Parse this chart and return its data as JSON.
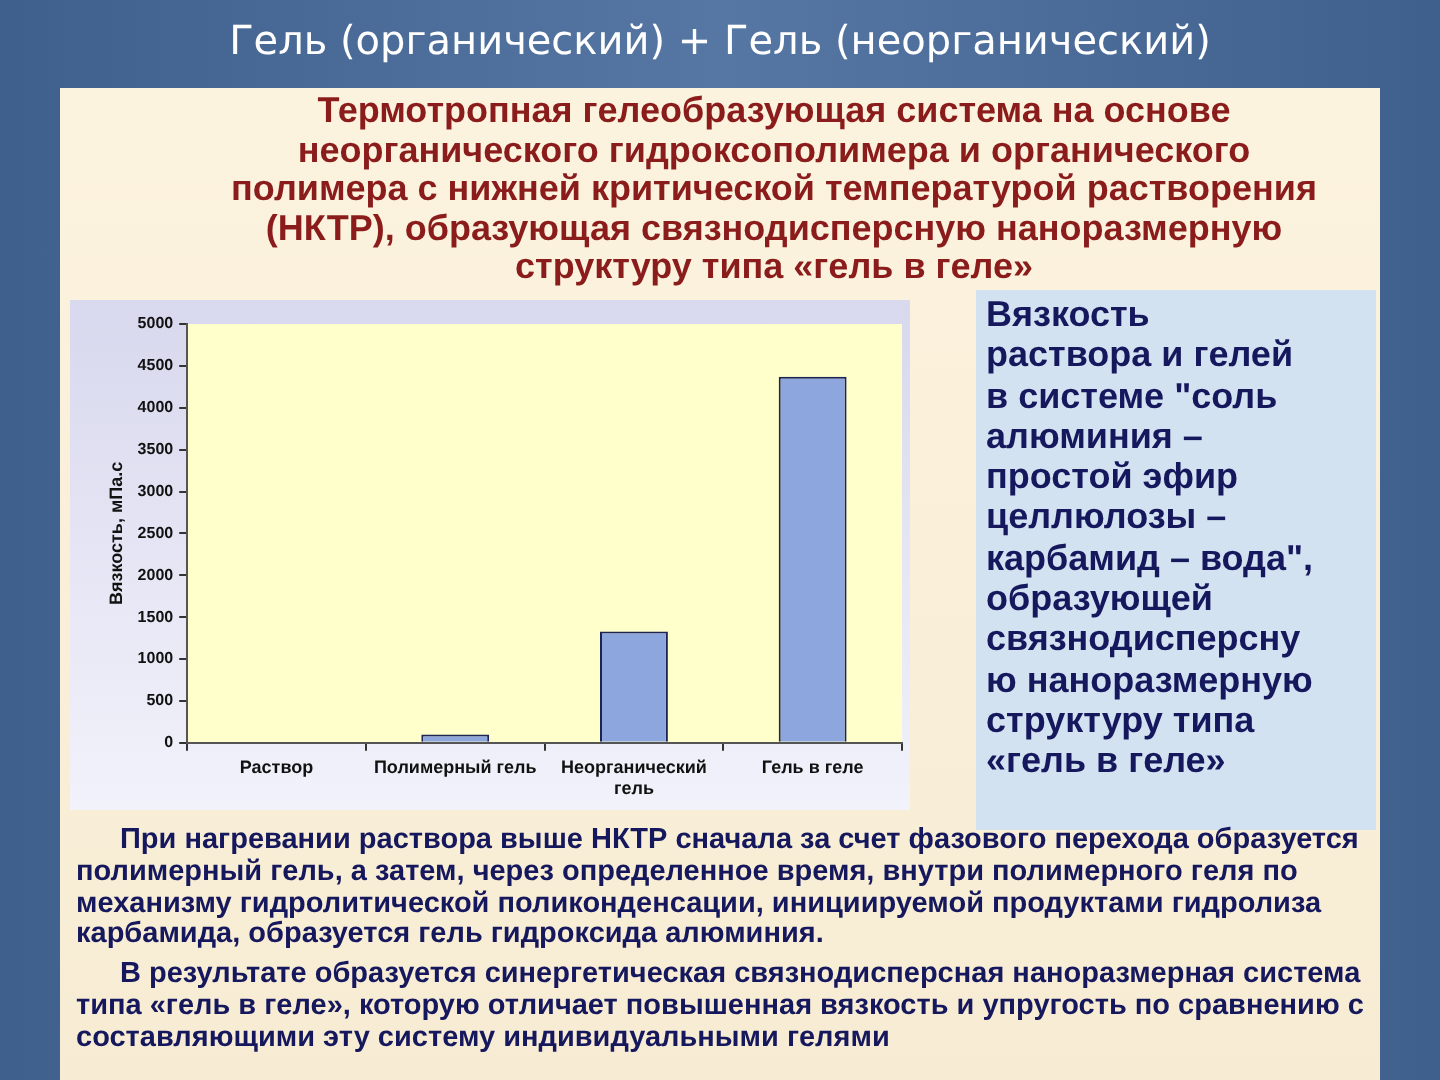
{
  "chart_data": {
    "type": "bar",
    "title": "Гель (органический) + Гель (неорганический)",
    "subtitle": "Термотропная гелеобразующая система на основе неорганического гидроксополимера и органического полимера с нижней критической температурой растворения (НКТР), образующая связнодисперсную наноразмерную структуру типа «гель в геле»",
    "ylabel": "Вязкость, мПа.с",
    "categories": [
      "Раствор",
      "Полимерный гель",
      "Неорганический гель",
      "Гель в геле"
    ],
    "values": [
      0,
      100,
      1330,
      4370
    ],
    "color": "#8ea6de",
    "ylim": [
      0,
      5000
    ],
    "yticks": [
      0,
      500,
      1000,
      1500,
      2000,
      2500,
      3000,
      3500,
      4000,
      4500,
      5000
    ],
    "annotations": [
      "Вязкость раствора и гелей в системе \"соль алюминия – простой эфир целлюлозы – карбамид – вода\", образующей связнодисперсную наноразмерную структуру типа «гель в геле»",
      "При нагревании раствора выше НКТР сначала за счет фазового перехода образуется полимерный гель, а затем, через определенное время, внутри полимерного геля по механизму гидролитической поликонденсации, инициируемой продуктами гидролиза карбамида, образуется гель гидроксида алюминия.",
      "В результате образуется синергетическая связнодисперсная наноразмерная система типа «гель в геле», которую отличает повышенная вязкость и упругость по сравнению с составляющими эту систему индивидуальными гелями"
    ]
  }
}
